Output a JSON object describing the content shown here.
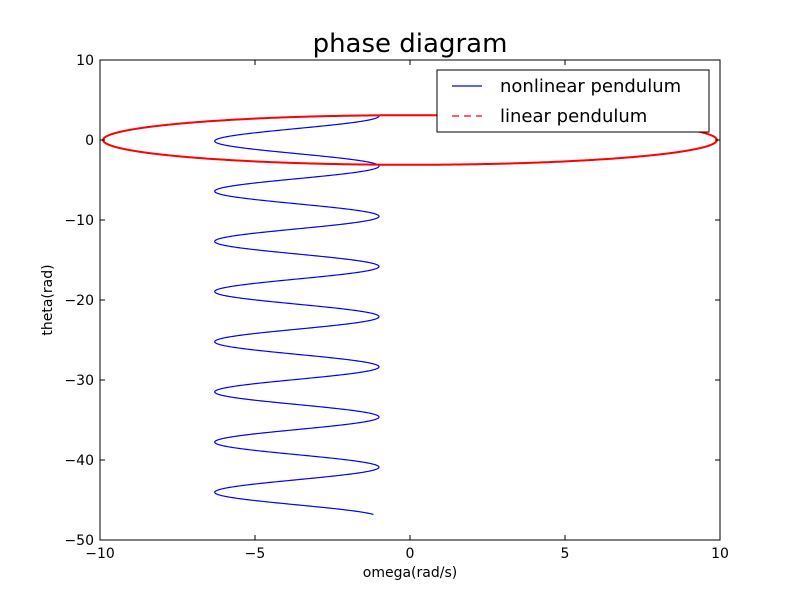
{
  "chart_data": {
    "type": "line",
    "title": "phase diagram",
    "xlabel": "omega(rad/s)",
    "ylabel": "theta(rad)",
    "xlim": [
      -10,
      10
    ],
    "ylim": [
      -50,
      10
    ],
    "xticks": [
      -10,
      -5,
      0,
      5,
      10
    ],
    "yticks": [
      10,
      0,
      -10,
      -20,
      -30,
      -40,
      -50
    ],
    "grid": false,
    "legend_position": "top-right",
    "series": [
      {
        "name": "nonlinear pendulum",
        "color": "#0000ff",
        "style": "solid",
        "shape": "sinusoid_sweep",
        "omega_min": -6.3,
        "omega_max": -1.0,
        "theta_start": 3.0,
        "theta_end": -46.8,
        "omega_end": -1.5,
        "peaks_theta": [
          3.0,
          -3.2,
          -9.5,
          -15.8,
          -22.1,
          -28.3,
          -34.6,
          -40.9
        ],
        "troughs_theta": [
          0.0,
          -6.3,
          -12.6,
          -18.9,
          -25.2,
          -31.5,
          -37.8,
          -44.1
        ]
      },
      {
        "name": "linear pendulum",
        "color": "#ff0000",
        "style": "dashed",
        "shape": "ellipse",
        "center_omega": 0,
        "center_theta": 0,
        "omega_radius": 9.9,
        "theta_radius": 3.1
      }
    ]
  }
}
